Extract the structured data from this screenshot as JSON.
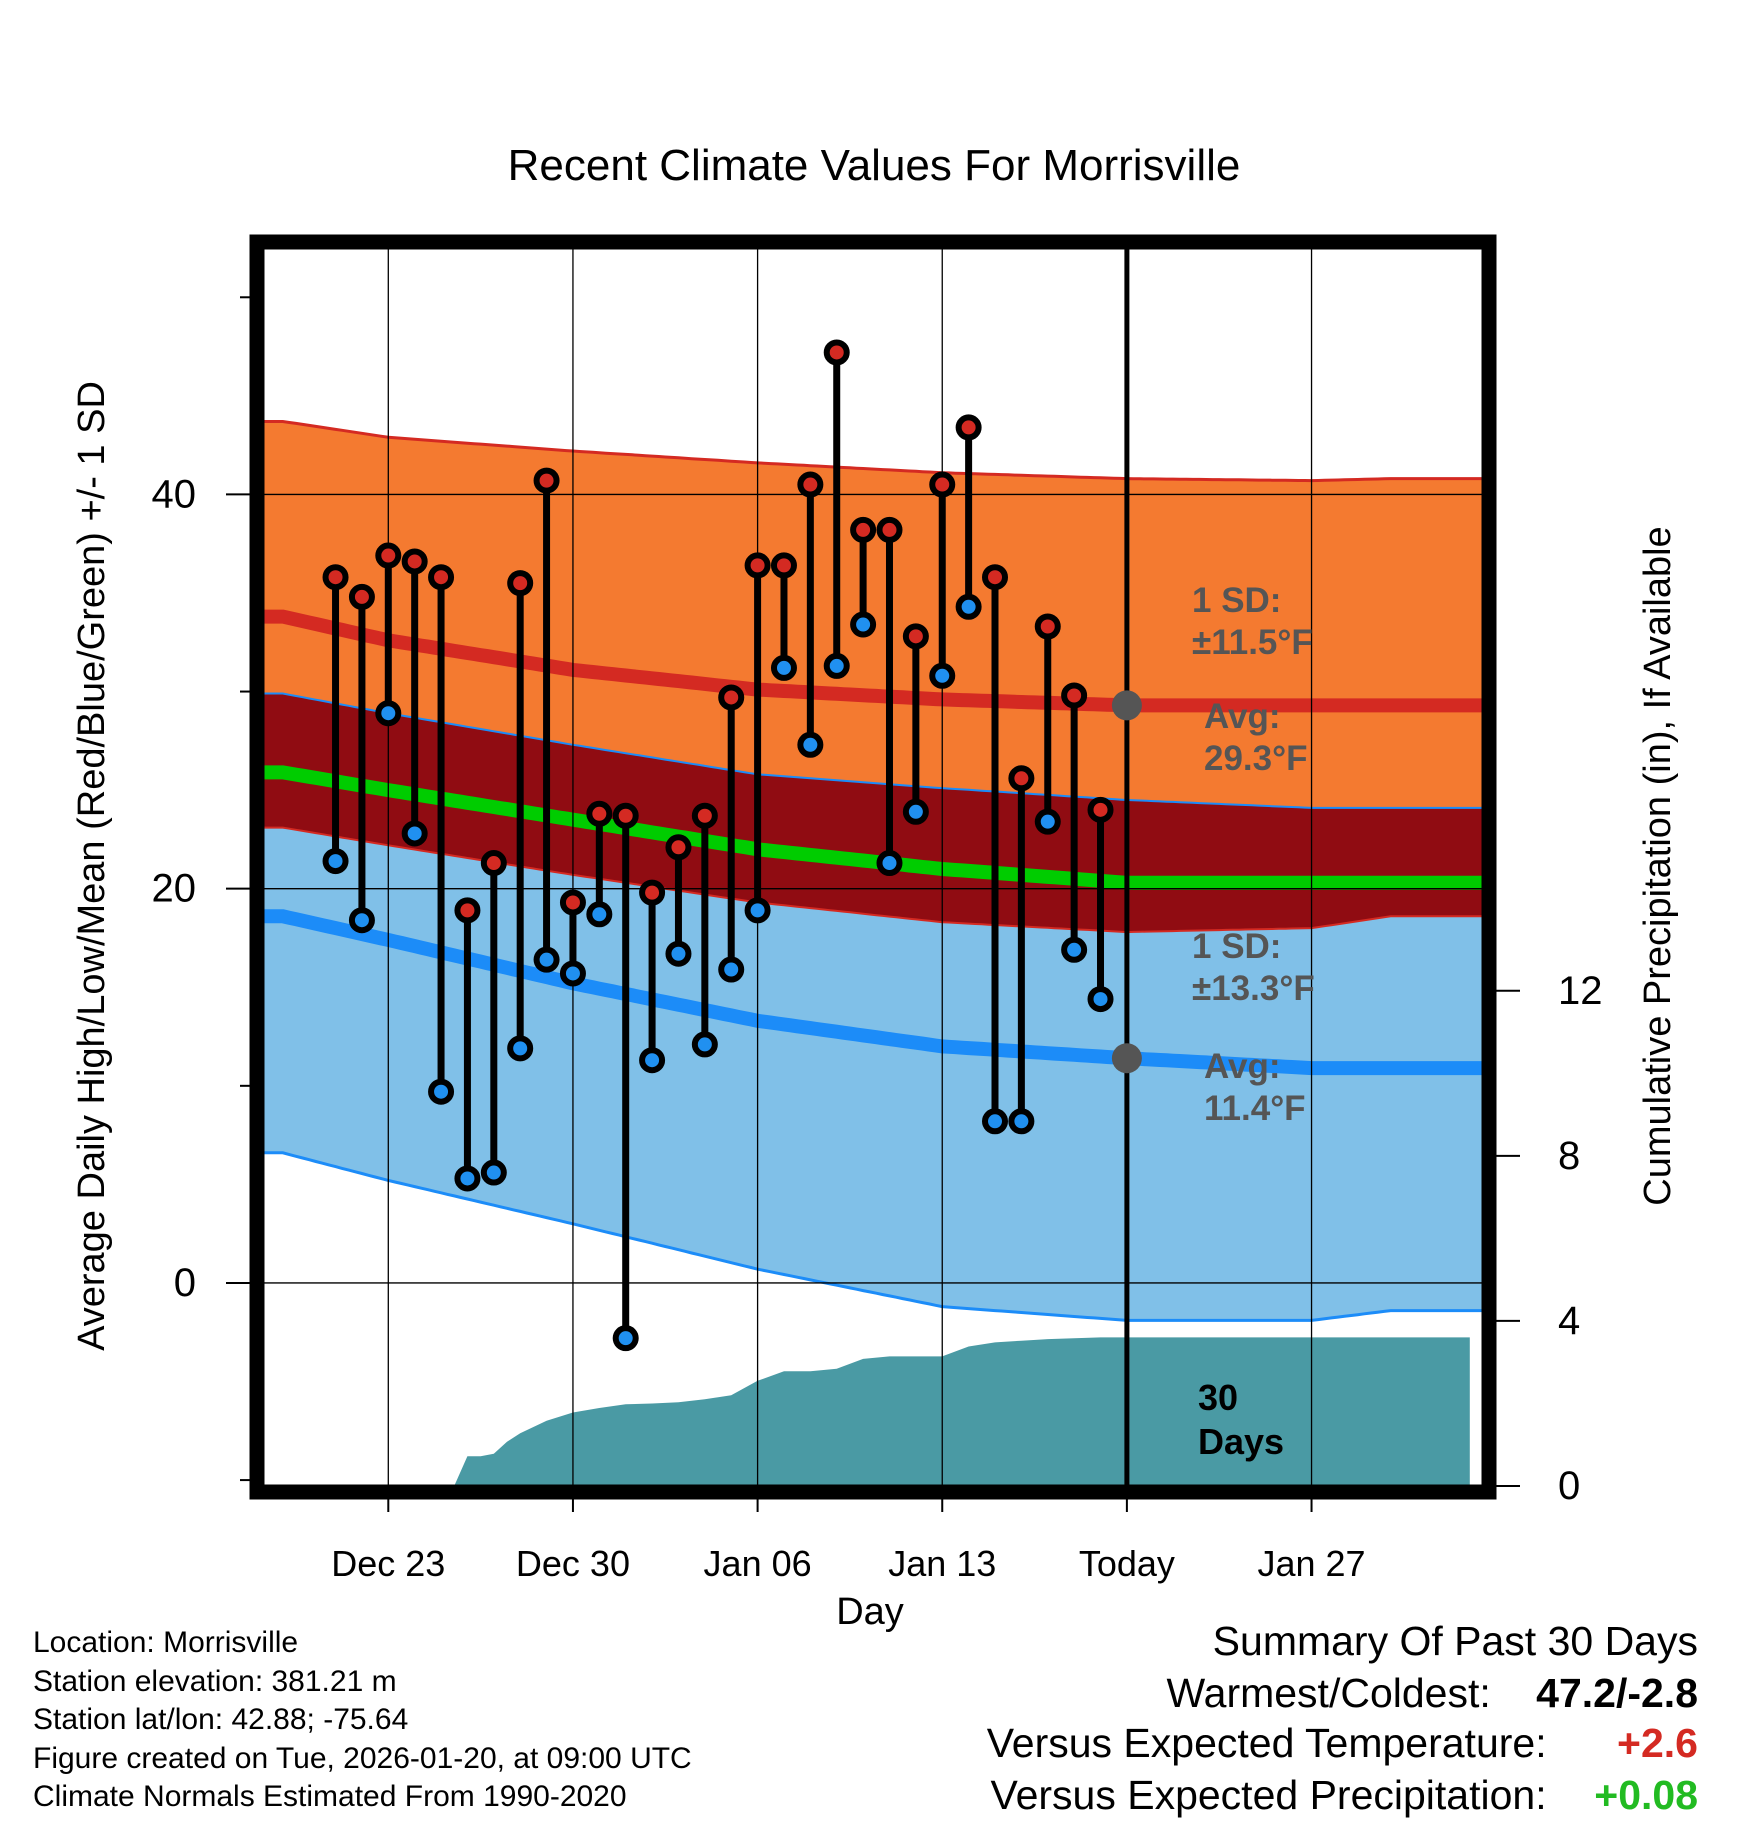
{
  "chart_data": {
    "type": "line",
    "title": "Recent Climate Values For Morrisville",
    "xlabel": "Day",
    "ylabel": "Average Daily High/Low/Mean (Red/Blue/Green) +/- 1 SD",
    "y2label": "Cumulative Precipitation (in), If Available",
    "xlim": [
      -4.75,
      41.5
    ],
    "ylim": [
      -10.3,
      52.5
    ],
    "y2lim": [
      0,
      30
    ],
    "x_ticks": [
      {
        "x": 0,
        "label": "Dec 23"
      },
      {
        "x": 7,
        "label": "Dec 30"
      },
      {
        "x": 14,
        "label": "Jan 06"
      },
      {
        "x": 21,
        "label": "Jan 13"
      },
      {
        "x": 28,
        "label": "Today"
      },
      {
        "x": 35,
        "label": "Jan 27"
      }
    ],
    "y_ticks": [
      0,
      20,
      40
    ],
    "y_minor_ticks": [
      -10,
      10,
      30,
      50
    ],
    "y2_ticks": [
      0,
      4,
      8,
      12
    ],
    "normals_days": [
      -4,
      0,
      7,
      14,
      21,
      28,
      35,
      38
    ],
    "normal_high_mean": [
      33.8,
      32.6,
      31.1,
      30.1,
      29.6,
      29.3,
      29.3,
      29.3
    ],
    "normal_high_upper": [
      43.7,
      42.9,
      42.2,
      41.6,
      41.1,
      40.8,
      40.7,
      40.8
    ],
    "normal_high_lower": [
      29.9,
      28.9,
      27.3,
      25.8,
      25.1,
      24.5,
      24.1,
      24.1
    ],
    "normal_low_mean": [
      18.6,
      17.4,
      15.2,
      13.3,
      12.0,
      11.4,
      10.9,
      10.9
    ],
    "normal_low_upper": [
      23.1,
      22.2,
      20.7,
      19.3,
      18.3,
      17.8,
      18.0,
      18.6
    ],
    "normal_low_lower": [
      6.6,
      5.2,
      3.0,
      0.7,
      -1.2,
      -1.9,
      -1.9,
      -1.4
    ],
    "normal_mean": [
      25.9,
      25.0,
      23.5,
      22.0,
      21.0,
      20.3,
      20.3,
      20.3
    ],
    "observed_days": [
      -2,
      -1,
      0,
      1,
      2,
      3,
      4,
      5,
      6,
      7,
      8,
      9,
      10,
      11,
      12,
      13,
      14,
      15,
      16,
      17,
      18,
      19,
      20,
      21,
      22,
      23,
      24,
      25,
      26,
      27
    ],
    "observed_high": [
      35.8,
      34.8,
      36.9,
      36.6,
      35.8,
      18.9,
      21.3,
      35.5,
      40.7,
      19.3,
      23.8,
      23.7,
      19.8,
      22.1,
      23.7,
      29.7,
      36.4,
      36.4,
      40.5,
      47.2,
      38.2,
      38.2,
      32.8,
      40.5,
      43.4,
      35.8,
      25.6,
      33.3,
      29.8,
      24.0
    ],
    "observed_low": [
      21.4,
      18.4,
      28.9,
      22.8,
      9.7,
      5.3,
      5.6,
      11.9,
      16.4,
      15.7,
      18.7,
      -2.8,
      11.3,
      16.7,
      12.1,
      15.9,
      18.9,
      31.2,
      27.3,
      31.3,
      33.4,
      21.3,
      23.9,
      30.8,
      34.3,
      8.2,
      8.2,
      23.4,
      16.9,
      14.4
    ],
    "precip_days": [
      -3,
      -2,
      -1,
      0,
      1,
      2,
      2.5,
      3,
      3.5,
      4,
      4.5,
      5,
      6,
      7,
      8,
      9,
      10,
      11,
      12,
      13,
      14,
      15,
      16,
      17,
      18,
      19,
      20,
      21,
      22,
      23,
      24,
      25,
      26,
      27,
      28,
      29,
      30,
      31,
      32,
      33,
      34,
      35,
      36,
      37,
      38,
      39,
      40,
      41
    ],
    "precip_cum": [
      0,
      0,
      0,
      0,
      0,
      0,
      0,
      0.72,
      0.72,
      0.78,
      1.07,
      1.28,
      1.58,
      1.78,
      1.89,
      1.98,
      2.0,
      2.03,
      2.1,
      2.2,
      2.55,
      2.78,
      2.78,
      2.84,
      3.08,
      3.14,
      3.14,
      3.14,
      3.38,
      3.48,
      3.52,
      3.56,
      3.58,
      3.6,
      3.6,
      3.6,
      3.6,
      3.6,
      3.6,
      3.6,
      3.6,
      3.6,
      3.6,
      3.6,
      3.6,
      3.6,
      3.6,
      3.6
    ],
    "today_x": 28,
    "annotations": {
      "high_sd_label": "1 SD:",
      "high_sd_value": "±11.5°F",
      "high_avg_label": "Avg:",
      "high_avg_value": "29.3°F",
      "low_sd_label": "1 SD:",
      "low_sd_value": "±13.3°F",
      "low_avg_label": "Avg:",
      "low_avg_value": "11.4°F",
      "days_count": "30",
      "days_label": "Days"
    },
    "colors": {
      "high_band": "#f47a30",
      "high_line": "#d42a22",
      "mid_band": "#900c12",
      "mean_line": "#00cc00",
      "low_band": "#80c0e8",
      "low_line": "#1c8cf8",
      "precip": "#4a9aa4",
      "high_dot": "#d42a22",
      "low_dot": "#2090f0",
      "annotation": "#555555"
    }
  },
  "footer": {
    "location": "Location: Morrisville",
    "elevation": "Station elevation: 381.21 m",
    "latlon": "Station lat/lon: 42.88; -75.64",
    "created": "Figure created on Tue, 2026-01-20, at 09:00 UTC",
    "normals": "Climate Normals Estimated From 1990-2020"
  },
  "summary": {
    "title": "Summary Of Past 30 Days",
    "warmest_coldest_label": "Warmest/Coldest:",
    "warmest_coldest_value": "47.2/-2.8",
    "temp_label": "Versus Expected Temperature:",
    "temp_value": "+2.6",
    "temp_color": "#d42a22",
    "precip_label": "Versus Expected Precipitation:",
    "precip_value": "+0.08",
    "precip_color": "#22bb22"
  }
}
